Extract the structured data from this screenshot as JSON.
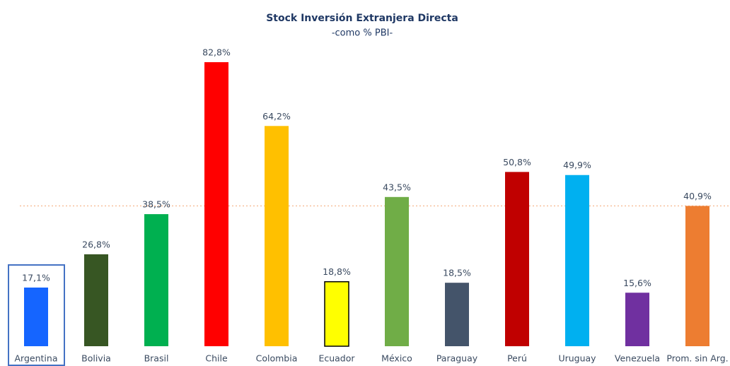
{
  "chart_data": {
    "type": "bar",
    "title": "Stock Inversión Extranjera Directa",
    "subtitle": "-como % PBI-",
    "categories": [
      "Argentina",
      "Bolivia",
      "Brasil",
      "Chile",
      "Colombia",
      "Ecuador",
      "México",
      "Paraguay",
      "Perú",
      "Uruguay",
      "Venezuela",
      "Prom. sin Arg."
    ],
    "values": [
      17.1,
      26.8,
      38.5,
      82.8,
      64.2,
      18.8,
      43.5,
      18.5,
      50.8,
      49.9,
      15.6,
      40.9
    ],
    "value_labels": [
      "17,1%",
      "26,8%",
      "38,5%",
      "82,8%",
      "64,2%",
      "18,8%",
      "43,5%",
      "18,5%",
      "50,8%",
      "49,9%",
      "15,6%",
      "40,9%"
    ],
    "colors": [
      "#1565ff",
      "#375623",
      "#00b050",
      "#ff0000",
      "#ffc000",
      "#ffff00",
      "#70ad47",
      "#44546a",
      "#c00000",
      "#00b0f0",
      "#7030a0",
      "#ed7d31"
    ],
    "ylim": [
      0,
      100
    ],
    "highlight": "Argentina",
    "reference_line": "Prom. sin Arg.",
    "reference_line_color": "#f4b183"
  }
}
